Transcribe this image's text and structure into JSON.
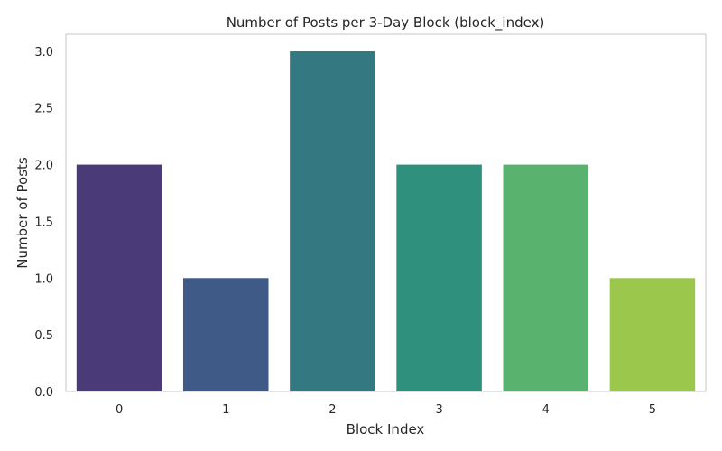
{
  "chart_data": {
    "type": "bar",
    "title": "Number of Posts per 3-Day Block (block_index)",
    "xlabel": "Block Index",
    "ylabel": "Number of Posts",
    "categories": [
      "0",
      "1",
      "2",
      "3",
      "4",
      "5"
    ],
    "values": [
      2,
      1,
      3,
      2,
      2,
      1
    ],
    "ylim": [
      0,
      3.15
    ],
    "yticks": [
      "0.0",
      "0.5",
      "1.0",
      "1.5",
      "2.0",
      "2.5",
      "3.0"
    ],
    "grid": false,
    "colors": [
      "#4a3a77",
      "#3f5a86",
      "#347882",
      "#2f917d",
      "#5ab26f",
      "#9ac74c"
    ]
  }
}
